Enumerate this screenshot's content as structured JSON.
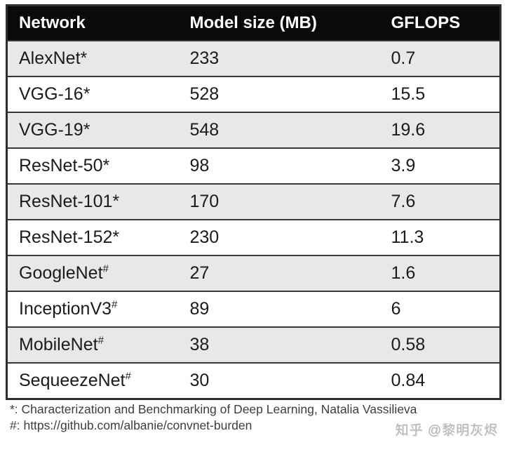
{
  "table": {
    "columns": [
      "Network",
      "Model size (MB)",
      "GFLOPS"
    ],
    "rows": [
      {
        "name": "AlexNet",
        "marker": "*",
        "size": "233",
        "gflops": "0.7"
      },
      {
        "name": "VGG-16",
        "marker": "*",
        "size": "528",
        "gflops": "15.5"
      },
      {
        "name": "VGG-19",
        "marker": "*",
        "size": "548",
        "gflops": "19.6"
      },
      {
        "name": "ResNet-50",
        "marker": "*",
        "size": "98",
        "gflops": "3.9"
      },
      {
        "name": "ResNet-101",
        "marker": "*",
        "size": "170",
        "gflops": "7.6"
      },
      {
        "name": "ResNet-152",
        "marker": "*",
        "size": "230",
        "gflops": "11.3"
      },
      {
        "name": "GoogleNet",
        "marker": "#",
        "size": "27",
        "gflops": "1.6"
      },
      {
        "name": "InceptionV3",
        "marker": "#",
        "size": "89",
        "gflops": "6"
      },
      {
        "name": "MobileNet",
        "marker": "#",
        "size": "38",
        "gflops": "0.58"
      },
      {
        "name": "SequeezeNet",
        "marker": "#",
        "size": "30",
        "gflops": "0.84"
      }
    ]
  },
  "footnotes": [
    "*: Characterization and Benchmarking of Deep Learning, Natalia Vassilieva",
    "#: https://github.com/albanie/convnet-burden"
  ],
  "watermark": "知乎 @黎明灰烬",
  "colors": {
    "header_bg": "#0a0a0a",
    "header_text": "#ffffff",
    "row_alt_bg": "#e8e8e8",
    "row_bg": "#ffffff",
    "border": "#383838",
    "footnote_text": "#3d3d3d",
    "watermark_text": "#b7b4b1"
  }
}
